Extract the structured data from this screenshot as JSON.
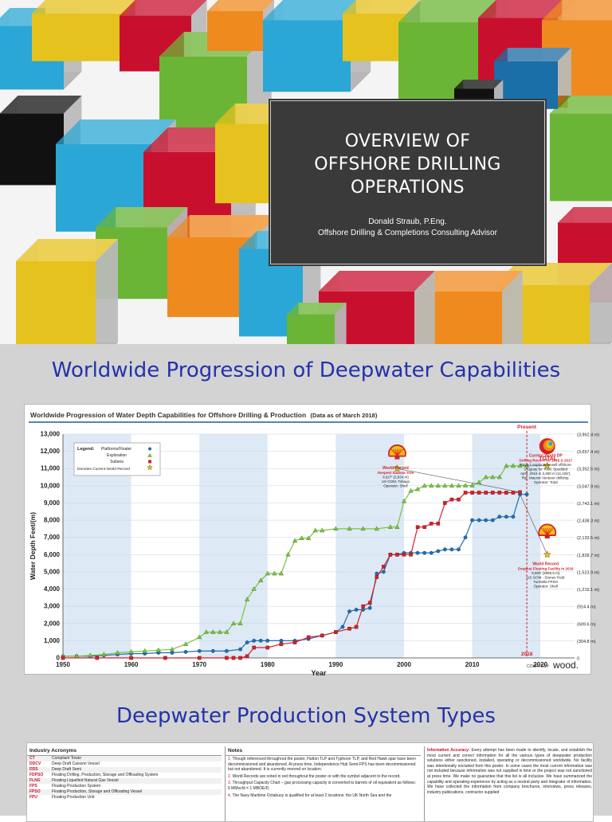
{
  "slide1": {
    "title_lines": [
      "OVERVIEW OF",
      "OFFSHORE DRILLING",
      "OPERATIONS"
    ],
    "author": "Donald Straub, P.Eng.",
    "role": "Offshore Drilling & Completions Consulting Advisor",
    "colors": {
      "panel": "#3a3a3a",
      "red": "#c8102e",
      "green": "#6bb536",
      "blue": "#2aa7d6",
      "yellow": "#e6c21e",
      "orange": "#ef8a1f"
    }
  },
  "slide2": {
    "heading": "Worldwide Progression of Deepwater Capabilities",
    "chart_title": "Worldwide Progression of Water Depth Capabilities for Offshore Drilling & Production",
    "chart_subtitle": "(Data as of March 2018)",
    "legend_title": "Legend:",
    "legend_items": [
      "Platforms/Floater",
      "Exploration",
      "Subsea",
      "Denotes Current World Record"
    ],
    "present_label": "Present",
    "present_year_label": "2018",
    "courtesy_label": "COURTESY:",
    "courtesy_logo": "wood.",
    "logos": [
      {
        "lettering": "TOTAL",
        "near": "exploration record"
      },
      {
        "lettering": "",
        "near": "subsea record",
        "icon": "shell-icon"
      },
      {
        "lettering": "",
        "near": "floating facility record",
        "icon": "shell-icon"
      }
    ],
    "annotations": [
      {
        "head": "World Record",
        "lines": [
          "Deepest Subsea Tree",
          "9,627' (2,934 m)",
          "US GOM, Tobago",
          "Operator: Shell"
        ]
      },
      {
        "head": "Current World DP",
        "lines": [
          "Drilling Record for 2016 & 2017",
          "Raya-1 exploration well offshore",
          "Uruguay for Total. Spudded",
          "April, 2016 in 3,400 m (11,155'),",
          "Rig: Maersk Venturer drillship.",
          "Operator: Total"
        ]
      },
      {
        "head": "World Record",
        "lines": [
          "Deepest Floating Facility in 2016",
          "9,500' (2895.5 m)",
          "US GOM - Stones Field",
          "Turritella FPSO",
          "Operator: Shell"
        ]
      }
    ]
  },
  "chart_data": {
    "type": "line",
    "title": "Worldwide Progression of Water Depth Capabilities for Offshore Drilling & Production",
    "subtitle": "(Data as of March 2018)",
    "xlabel": "Year",
    "ylabel": "Water Depth Feet/(m)",
    "xlim": [
      1950,
      2025
    ],
    "ylim": [
      0,
      13000
    ],
    "x_ticks": [
      1950,
      1960,
      1970,
      1980,
      1990,
      2000,
      2010,
      2020
    ],
    "y_ticks": [
      0,
      1000,
      2000,
      3000,
      4000,
      5000,
      6000,
      7000,
      8000,
      9000,
      10000,
      11000,
      12000,
      13000
    ],
    "y_tick_labels": [
      "0",
      "1,000",
      "2,000",
      "3,000",
      "4,000",
      "5,000",
      "6,000",
      "7,000",
      "8,000",
      "9,000",
      "10,000",
      "11,000",
      "12,000",
      "13,000"
    ],
    "right_tick_labels": [
      "0",
      "(304.8 m)",
      "(609.6 m)",
      "(914.4 m)",
      "(1,219.1 m)",
      "(1,523.9 m)",
      "(1,828.7 m)",
      "(2,133.5 m)",
      "(2,438.3 m)",
      "(2,743.1 m)",
      "(3,047.9 m)",
      "(3,352.6 m)",
      "(3,657.4 m)",
      "(3,962.4 m)"
    ],
    "grid": true,
    "legend_position": "top-left",
    "present_year": 2018,
    "series": [
      {
        "name": "Platforms/Floater",
        "color": "#1f6fb2",
        "marker": "circle",
        "x": [
          1950,
          1952,
          1954,
          1956,
          1958,
          1960,
          1962,
          1964,
          1966,
          1968,
          1970,
          1972,
          1974,
          1976,
          1977,
          1978,
          1979,
          1980,
          1982,
          1984,
          1986,
          1988,
          1990,
          1991,
          1992,
          1993,
          1994,
          1995,
          1996,
          1997,
          1998,
          1999,
          2000,
          2001,
          2002,
          2003,
          2004,
          2005,
          2006,
          2007,
          2008,
          2009,
          2010,
          2011,
          2012,
          2013,
          2014,
          2015,
          2016,
          2017,
          2018
        ],
        "y": [
          100,
          100,
          100,
          150,
          200,
          250,
          250,
          300,
          300,
          350,
          400,
          400,
          400,
          500,
          900,
          1000,
          1000,
          1000,
          1000,
          1000,
          1100,
          1300,
          1500,
          1800,
          2700,
          2800,
          2800,
          2900,
          4900,
          5000,
          6000,
          6000,
          6100,
          6100,
          6100,
          6100,
          6100,
          6200,
          6300,
          6300,
          6300,
          7000,
          8000,
          8000,
          8000,
          8000,
          8200,
          8200,
          8200,
          9500,
          9500
        ]
      },
      {
        "name": "Exploration",
        "color": "#7cc242",
        "marker": "triangle",
        "x": [
          1950,
          1952,
          1954,
          1956,
          1958,
          1960,
          1962,
          1964,
          1966,
          1968,
          1970,
          1971,
          1972,
          1973,
          1974,
          1975,
          1976,
          1977,
          1978,
          1979,
          1980,
          1981,
          1982,
          1983,
          1984,
          1985,
          1986,
          1987,
          1988,
          1990,
          1992,
          1994,
          1996,
          1998,
          1999,
          2000,
          2001,
          2002,
          2003,
          2004,
          2005,
          2006,
          2007,
          2008,
          2009,
          2010,
          2011,
          2012,
          2013,
          2014,
          2015,
          2016,
          2017,
          2018
        ],
        "y": [
          100,
          100,
          150,
          200,
          300,
          350,
          400,
          450,
          500,
          800,
          1200,
          1500,
          1500,
          1500,
          1500,
          2000,
          2000,
          3400,
          4000,
          4500,
          4900,
          4900,
          4900,
          6000,
          6800,
          6950,
          6950,
          7400,
          7400,
          7500,
          7500,
          7500,
          7500,
          7600,
          7600,
          9100,
          9700,
          9800,
          10000,
          10000,
          10000,
          10000,
          10000,
          10000,
          10011,
          10011,
          10194,
          10500,
          10500,
          10500,
          11155,
          11155,
          11155,
          11155
        ]
      },
      {
        "name": "Subsea",
        "color": "#d1232a",
        "marker": "square",
        "x": [
          1950,
          1955,
          1960,
          1965,
          1970,
          1974,
          1975,
          1976,
          1977,
          1978,
          1980,
          1982,
          1984,
          1986,
          1988,
          1990,
          1992,
          1993,
          1994,
          1995,
          1996,
          1997,
          1998,
          1999,
          2000,
          2001,
          2002,
          2003,
          2004,
          2005,
          2006,
          2007,
          2008,
          2009,
          2010,
          2011,
          2012,
          2013,
          2014,
          2015,
          2016,
          2017
        ],
        "y": [
          0,
          0,
          0,
          0,
          0,
          0,
          0,
          0,
          100,
          600,
          600,
          800,
          900,
          1200,
          1300,
          1500,
          1700,
          1800,
          3000,
          3200,
          4700,
          5300,
          6000,
          6000,
          6000,
          6000,
          7600,
          7600,
          7800,
          7800,
          9000,
          9200,
          9200,
          9600,
          9600,
          9600,
          9600,
          9600,
          9600,
          9600,
          9600,
          9627
        ]
      }
    ],
    "world_records": [
      {
        "label": "World Record Deepest Subsea Tree",
        "x": 1999,
        "y": 11000
      },
      {
        "label": "Current World DP Drilling Record",
        "x": 2021,
        "y": 11155
      },
      {
        "label": "World Record Deepest Floating Facility",
        "x": 2021,
        "y": 6000
      }
    ]
  },
  "slide3": {
    "heading": "Deepwater Production System Types",
    "acronyms_title": "Industry Acronyms",
    "acronyms": [
      [
        "CT",
        "Compliant Tower"
      ],
      [
        "DDCV",
        "Deep Draft Caisson Vessel"
      ],
      [
        "DDS",
        "Deep Draft Semi"
      ],
      [
        "FDPSO",
        "Floating Drilling, Production, Storage and Offloading System"
      ],
      [
        "FLNG",
        "Floating Liquefied Natural Gas Vessel"
      ],
      [
        "FPS",
        "Floating Production System"
      ],
      [
        "FPSO",
        "Floating Production, Storage and Offloading Vessel"
      ],
      [
        "FPU",
        "Floating Production Unit"
      ]
    ],
    "notes_title": "Notes",
    "notes": [
      "Though referenced throughout the poster, Hutton TLP and Typhoon TLP, and Red Hawk spar have been decommissioned and abandoned. At press time, Independence Hub Semi-FPS has been decommissioned but not abandoned. It is currently moored on location.",
      "World Records are noted in red throughout the poster or with the symbol adjacent to the record.",
      "Throughput Capacity Chart – gas processing capacity is converted to barrels of oil equivalent as follows: 6 MMscfd = 1 MBOE/D.",
      "The Navy Maritime Octabuoy is qualified for at least 2 locations: the UK North Sea and the"
    ],
    "info_head": "Information Accuracy:",
    "info_text": "Every attempt has been made to identify, locate, and establish the most current and correct information for all the various types of deepwater production solutions either sanctioned, installed, operating or decommissioned worldwide. No facility was intentionally excluded from this poster. In some cases the most current information was not included because information was not supplied in time or the project was not sanctioned at press time. We make no guarantee that this list is all inclusive. We have summarized the capability and operating-experience by acting as a neutral party and integrator of information. We have collected the information from company brochures, interviews, press releases, industry publications, contractor supplied"
  }
}
